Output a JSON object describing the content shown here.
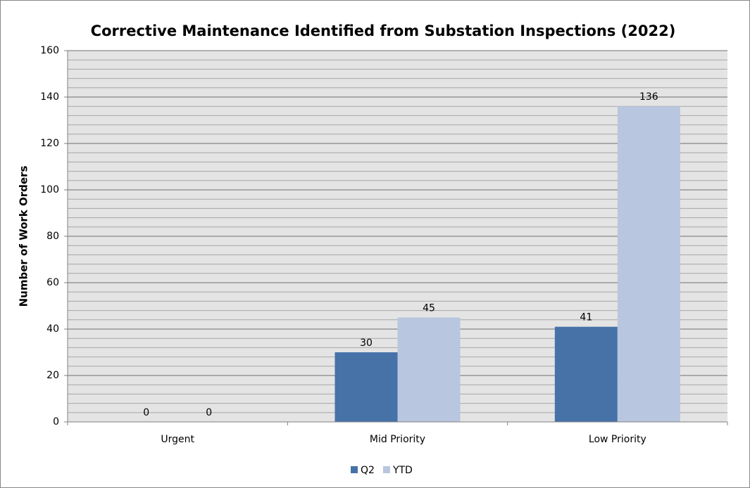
{
  "chart_data": {
    "type": "bar",
    "title": "Corrective Maintenance Identified from Substation Inspections (2022)",
    "ylabel": "Number of Work Orders",
    "categories": [
      "Urgent",
      "Mid Priority",
      "Low Priority"
    ],
    "series": [
      {
        "name": "Q2",
        "color": "#4672a8",
        "values": [
          0,
          30,
          41
        ]
      },
      {
        "name": "YTD",
        "color": "#b9c6df",
        "values": [
          0,
          45,
          136
        ]
      }
    ],
    "ylim": [
      0,
      160
    ],
    "yticks": [
      0,
      20,
      40,
      60,
      80,
      100,
      120,
      140,
      160
    ],
    "yminor": [
      4,
      8,
      12,
      16,
      24,
      28,
      32,
      36,
      44,
      48,
      52,
      56,
      64,
      68,
      72,
      76,
      84,
      88,
      92,
      96,
      104,
      108,
      112,
      116,
      124,
      128,
      132,
      136,
      144,
      148,
      152,
      156
    ],
    "grid": true,
    "legend": "bottom"
  }
}
